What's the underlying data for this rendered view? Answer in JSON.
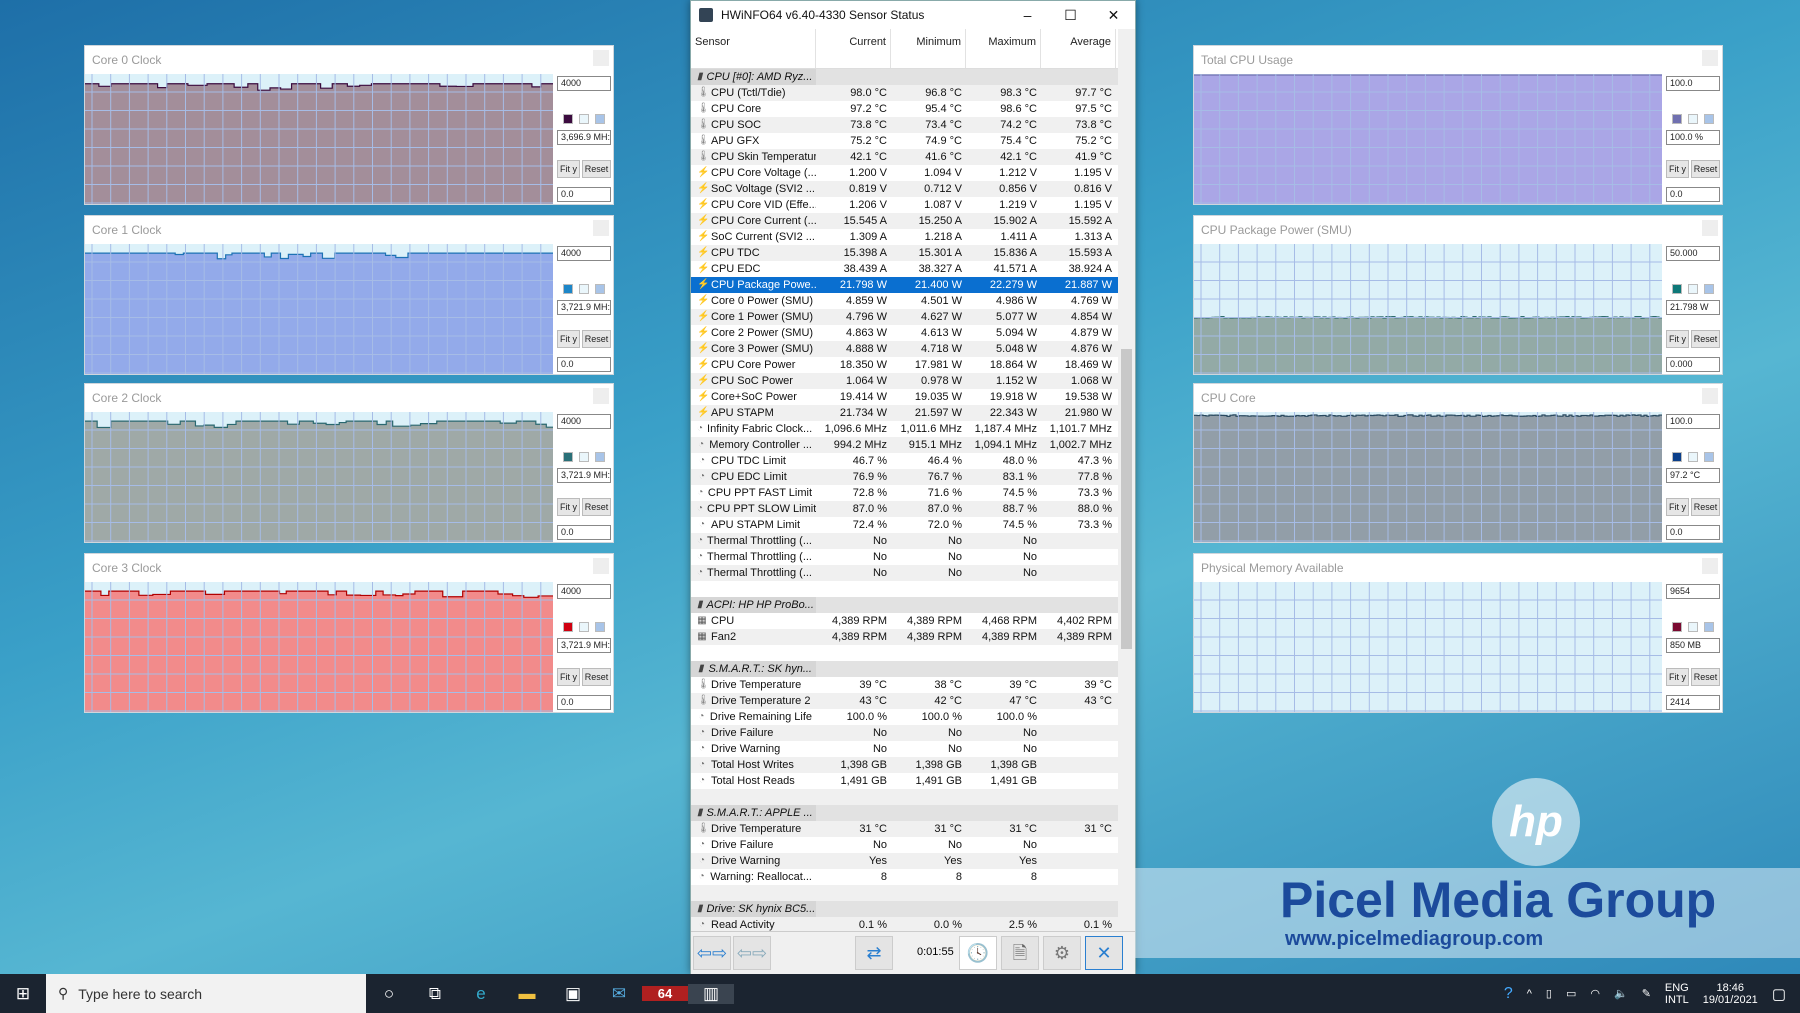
{
  "graphs": [
    {
      "title": "Core 0 Clock",
      "max": "4000",
      "current": "3,696.9 MH:",
      "min": "0.0",
      "level": 0.925,
      "fill": "#a38e9a",
      "line": "#3b0b3f",
      "swatch": "#3b0b3f",
      "jag": true
    },
    {
      "title": "Core 1 Clock",
      "max": "4000",
      "current": "3,721.9 MH:",
      "min": "0.0",
      "level": 0.93,
      "fill": "#93aaea",
      "line": "#1d72b4",
      "swatch": "#1d86c8",
      "jag": true
    },
    {
      "title": "Core 2 Clock",
      "max": "4000",
      "current": "3,721.9 MH:",
      "min": "0.0",
      "level": 0.93,
      "fill": "#9fa9a7",
      "line": "#2a6870",
      "swatch": "#2a7078",
      "jag": true
    },
    {
      "title": "Core 3 Clock",
      "max": "4000",
      "current": "3,721.9 MH:",
      "min": "0.0",
      "level": 0.93,
      "fill": "#f28b8b",
      "line": "#b00000",
      "swatch": "#d00010",
      "jag": true
    },
    {
      "title": "Total CPU Usage",
      "max": "100.0",
      "current": "100.0 %",
      "min": "0.0",
      "level": 1.0,
      "fill": "#aaa6e6",
      "line": "#7070b0",
      "swatch": "#7070b0",
      "jag": false
    },
    {
      "title": "CPU Package Power (SMU)",
      "max": "50.000",
      "current": "21.798 W",
      "min": "0.000",
      "level": 0.436,
      "fill": "#93aaa6",
      "line": "#2f6e6e",
      "swatch": "#0e7878",
      "jag": false
    },
    {
      "title": "CPU Core",
      "max": "100.0",
      "current": "97.2 °C",
      "min": "0.0",
      "level": 0.972,
      "fill": "#929ea8",
      "line": "#2a4a60",
      "swatch": "#0b3f8a",
      "jag": false
    },
    {
      "title": "Physical Memory Available",
      "max": "9654",
      "current": "850 MB",
      "min": "2414",
      "level": 0,
      "fill": "#dcf1f9",
      "line": "#6a0a2a",
      "swatch": "#7a0a30",
      "jag": false
    }
  ],
  "graph_buttons": {
    "fit": "Fit y",
    "reset": "Reset"
  },
  "window": {
    "title": "HWiNFO64 v6.40-4330 Sensor Status",
    "minimize": "–",
    "maximize": "☐",
    "close": "✕"
  },
  "columns": [
    "Sensor",
    "Current",
    "Minimum",
    "Maximum",
    "Average"
  ],
  "rows": [
    {
      "t": "g",
      "n": "CPU [#0]: AMD Ryz..."
    },
    {
      "t": "temp",
      "n": "CPU (Tctl/Tdie)",
      "v": [
        "98.0 °C",
        "96.8 °C",
        "98.3 °C",
        "97.7 °C"
      ]
    },
    {
      "t": "temp",
      "n": "CPU Core",
      "v": [
        "97.2 °C",
        "95.4 °C",
        "98.6 °C",
        "97.5 °C"
      ]
    },
    {
      "t": "temp",
      "n": "CPU SOC",
      "v": [
        "73.8 °C",
        "73.4 °C",
        "74.2 °C",
        "73.8 °C"
      ]
    },
    {
      "t": "temp",
      "n": "APU GFX",
      "v": [
        "75.2 °C",
        "74.9 °C",
        "75.4 °C",
        "75.2 °C"
      ]
    },
    {
      "t": "temp",
      "n": "CPU Skin Temperature",
      "v": [
        "42.1 °C",
        "41.6 °C",
        "42.1 °C",
        "41.9 °C"
      ]
    },
    {
      "t": "volt",
      "n": "CPU Core Voltage (...",
      "v": [
        "1.200 V",
        "1.094 V",
        "1.212 V",
        "1.195 V"
      ]
    },
    {
      "t": "volt",
      "n": "SoC Voltage (SVI2 ...",
      "v": [
        "0.819 V",
        "0.712 V",
        "0.856 V",
        "0.816 V"
      ]
    },
    {
      "t": "volt",
      "n": "CPU Core VID (Effe...",
      "v": [
        "1.206 V",
        "1.087 V",
        "1.219 V",
        "1.195 V"
      ]
    },
    {
      "t": "volt",
      "n": "CPU Core Current (...",
      "v": [
        "15.545 A",
        "15.250 A",
        "15.902 A",
        "15.592 A"
      ]
    },
    {
      "t": "volt",
      "n": "SoC Current (SVI2 ...",
      "v": [
        "1.309 A",
        "1.218 A",
        "1.411 A",
        "1.313 A"
      ]
    },
    {
      "t": "volt",
      "n": "CPU TDC",
      "v": [
        "15.398 A",
        "15.301 A",
        "15.836 A",
        "15.593 A"
      ]
    },
    {
      "t": "volt",
      "n": "CPU EDC",
      "v": [
        "38.439 A",
        "38.327 A",
        "41.571 A",
        "38.924 A"
      ]
    },
    {
      "t": "volt",
      "n": "CPU Package Powe...",
      "v": [
        "21.798 W",
        "21.400 W",
        "22.279 W",
        "21.887 W"
      ],
      "sel": true
    },
    {
      "t": "volt",
      "n": "Core 0 Power (SMU)",
      "v": [
        "4.859 W",
        "4.501 W",
        "4.986 W",
        "4.769 W"
      ]
    },
    {
      "t": "volt",
      "n": "Core 1 Power (SMU)",
      "v": [
        "4.796 W",
        "4.627 W",
        "5.077 W",
        "4.854 W"
      ]
    },
    {
      "t": "volt",
      "n": "Core 2 Power (SMU)",
      "v": [
        "4.863 W",
        "4.613 W",
        "5.094 W",
        "4.879 W"
      ]
    },
    {
      "t": "volt",
      "n": "Core 3 Power (SMU)",
      "v": [
        "4.888 W",
        "4.718 W",
        "5.048 W",
        "4.876 W"
      ]
    },
    {
      "t": "volt",
      "n": "CPU Core Power",
      "v": [
        "18.350 W",
        "17.981 W",
        "18.864 W",
        "18.469 W"
      ]
    },
    {
      "t": "volt",
      "n": "CPU SoC Power",
      "v": [
        "1.064 W",
        "0.978 W",
        "1.152 W",
        "1.068 W"
      ]
    },
    {
      "t": "volt",
      "n": "Core+SoC Power",
      "v": [
        "19.414 W",
        "19.035 W",
        "19.918 W",
        "19.538 W"
      ]
    },
    {
      "t": "volt",
      "n": "APU STAPM",
      "v": [
        "21.734 W",
        "21.597 W",
        "22.343 W",
        "21.980 W"
      ]
    },
    {
      "t": "clk",
      "n": "Infinity Fabric Clock...",
      "v": [
        "1,096.6 MHz",
        "1,011.6 MHz",
        "1,187.4 MHz",
        "1,101.7 MHz"
      ]
    },
    {
      "t": "clk",
      "n": "Memory Controller ...",
      "v": [
        "994.2 MHz",
        "915.1 MHz",
        "1,094.1 MHz",
        "1,002.7 MHz"
      ]
    },
    {
      "t": "clk",
      "n": "CPU TDC Limit",
      "v": [
        "46.7 %",
        "46.4 %",
        "48.0 %",
        "47.3 %"
      ]
    },
    {
      "t": "clk",
      "n": "CPU EDC Limit",
      "v": [
        "76.9 %",
        "76.7 %",
        "83.1 %",
        "77.8 %"
      ]
    },
    {
      "t": "clk",
      "n": "CPU PPT FAST Limit",
      "v": [
        "72.8 %",
        "71.6 %",
        "74.5 %",
        "73.3 %"
      ]
    },
    {
      "t": "clk",
      "n": "CPU PPT SLOW Limit",
      "v": [
        "87.0 %",
        "87.0 %",
        "88.7 %",
        "88.0 %"
      ]
    },
    {
      "t": "clk",
      "n": "APU STAPM Limit",
      "v": [
        "72.4 %",
        "72.0 %",
        "74.5 %",
        "73.3 %"
      ]
    },
    {
      "t": "clk",
      "n": "Thermal Throttling (...",
      "v": [
        "No",
        "No",
        "No",
        ""
      ]
    },
    {
      "t": "clk",
      "n": "Thermal Throttling (...",
      "v": [
        "No",
        "No",
        "No",
        ""
      ]
    },
    {
      "t": "clk",
      "n": "Thermal Throttling (...",
      "v": [
        "No",
        "No",
        "No",
        ""
      ]
    },
    {
      "t": "e"
    },
    {
      "t": "g",
      "n": "ACPI: HP HP ProBo..."
    },
    {
      "t": "fan",
      "n": "CPU",
      "v": [
        "4,389 RPM",
        "4,389 RPM",
        "4,468 RPM",
        "4,402 RPM"
      ]
    },
    {
      "t": "fan",
      "n": "Fan2",
      "v": [
        "4,389 RPM",
        "4,389 RPM",
        "4,389 RPM",
        "4,389 RPM"
      ]
    },
    {
      "t": "e"
    },
    {
      "t": "g",
      "n": "S.M.A.R.T.: SK hyn..."
    },
    {
      "t": "temp",
      "n": "Drive Temperature",
      "v": [
        "39 °C",
        "38 °C",
        "39 °C",
        "39 °C"
      ]
    },
    {
      "t": "temp",
      "n": "Drive Temperature 2",
      "v": [
        "43 °C",
        "42 °C",
        "47 °C",
        "43 °C"
      ]
    },
    {
      "t": "clk",
      "n": "Drive Remaining Life",
      "v": [
        "100.0 %",
        "100.0 %",
        "100.0 %",
        ""
      ]
    },
    {
      "t": "clk",
      "n": "Drive Failure",
      "v": [
        "No",
        "No",
        "No",
        ""
      ]
    },
    {
      "t": "clk",
      "n": "Drive Warning",
      "v": [
        "No",
        "No",
        "No",
        ""
      ]
    },
    {
      "t": "clk",
      "n": "Total Host Writes",
      "v": [
        "1,398 GB",
        "1,398 GB",
        "1,398 GB",
        ""
      ]
    },
    {
      "t": "clk",
      "n": "Total Host Reads",
      "v": [
        "1,491 GB",
        "1,491 GB",
        "1,491 GB",
        ""
      ]
    },
    {
      "t": "e"
    },
    {
      "t": "g",
      "n": "S.M.A.R.T.: APPLE ..."
    },
    {
      "t": "temp",
      "n": "Drive Temperature",
      "v": [
        "31 °C",
        "31 °C",
        "31 °C",
        "31 °C"
      ]
    },
    {
      "t": "clk",
      "n": "Drive Failure",
      "v": [
        "No",
        "No",
        "No",
        ""
      ]
    },
    {
      "t": "clk",
      "n": "Drive Warning",
      "v": [
        "Yes",
        "Yes",
        "Yes",
        ""
      ]
    },
    {
      "t": "clk",
      "n": "Warning: Reallocat...",
      "v": [
        "8",
        "8",
        "8",
        ""
      ]
    },
    {
      "t": "e"
    },
    {
      "t": "g",
      "n": "Drive: SK hynix BC5..."
    },
    {
      "t": "clk",
      "n": "Read Activity",
      "v": [
        "0.1 %",
        "0.0 %",
        "2.5 %",
        "0.1 %"
      ]
    }
  ],
  "icons": {
    "g": "▮",
    "temp": "🌡",
    "volt": "⚡",
    "clk": "◔",
    "fan": "▦",
    "e": ""
  },
  "toolbar": {
    "timer": "0:01:55",
    "nav": "⇦⇨",
    "nav2": "⇦⇨",
    "network": "⇄",
    "clock": "🕓",
    "report": "🗎",
    "settings": "⚙",
    "close": "✕"
  },
  "taskbar": {
    "search_placeholder": "Type here to search",
    "lang1": "ENG",
    "lang2": "INTL",
    "time": "18:46",
    "date": "19/01/2021"
  },
  "watermark": {
    "name": "Picel Media Group",
    "url": "www.picelmediagroup.com",
    "logo": "hp"
  }
}
